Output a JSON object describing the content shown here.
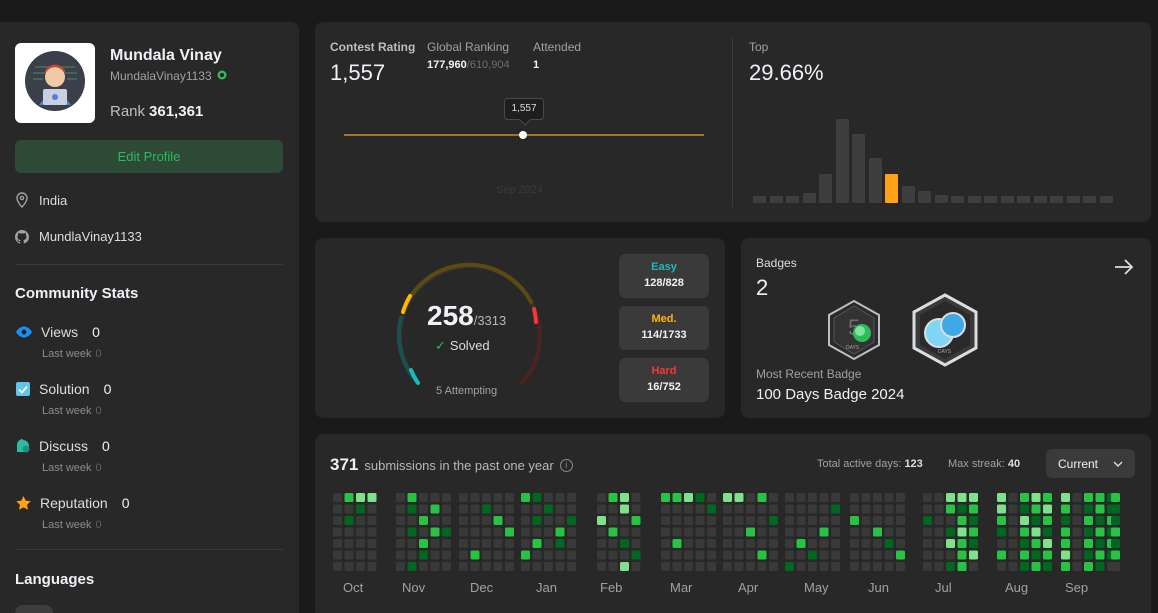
{
  "profile": {
    "name": "Mundala Vinay",
    "handle": "MundalaVinay1133",
    "rank_label": "Rank",
    "rank_value": "361,361",
    "edit_label": "Edit Profile",
    "location": "India",
    "github": "MundlaVinay1133"
  },
  "community": {
    "title": "Community Stats",
    "items": [
      {
        "label": "Views",
        "value": "0",
        "sub_label": "Last week",
        "sub_value": "0",
        "icon": "eye-icon",
        "color": "#1a90ff"
      },
      {
        "label": "Solution",
        "value": "0",
        "sub_label": "Last week",
        "sub_value": "0",
        "icon": "check-square-icon",
        "color": "#5fc4ee"
      },
      {
        "label": "Discuss",
        "value": "0",
        "sub_label": "Last week",
        "sub_value": "0",
        "icon": "discuss-icon",
        "color": "#2cbba3"
      },
      {
        "label": "Reputation",
        "value": "0",
        "sub_label": "Last week",
        "sub_value": "0",
        "icon": "star-icon",
        "color": "#ffa116"
      }
    ]
  },
  "languages": {
    "title": "Languages"
  },
  "contest": {
    "rating_label": "Contest Rating",
    "rating": "1,557",
    "global_label": "Global Ranking",
    "global_value": "177,960",
    "global_total": "/610,904",
    "attended_label": "Attended",
    "attended_value": "1",
    "tooltip": "1,557",
    "date": "Sep 2024",
    "top_label": "Top",
    "top_value": "29.66%",
    "histogram_levels": [
      0.08,
      0.08,
      0.08,
      0.12,
      0.34,
      1.0,
      0.82,
      0.54,
      0.34,
      0.2,
      0.14,
      0.1,
      0.08,
      0.08,
      0.08,
      0.08,
      0.08,
      0.08,
      0.08,
      0.08,
      0.08,
      0.08
    ],
    "histogram_highlight_index": 8,
    "highlight_color": "#ffa116"
  },
  "solved": {
    "count": "258",
    "total": "/3313",
    "label": "Solved",
    "attempting": "5 Attempting",
    "easy_label": "Easy",
    "easy_value": "128/828",
    "easy_color": "#1cbaba",
    "med_label": "Med.",
    "med_value": "114/1733",
    "med_color": "#ffb700",
    "hard_label": "Hard",
    "hard_value": "16/752",
    "hard_color": "#f63737"
  },
  "badges": {
    "label": "Badges",
    "count": "2",
    "recent_label": "Most Recent Badge",
    "recent_name": "100 Days Badge 2024",
    "badge1_text": "DAYS",
    "badge2_text": "DAYS"
  },
  "submissions": {
    "count": "371",
    "label": "submissions in the past one year",
    "active_label": "Total active days:",
    "active_value": "123",
    "streak_label": "Max streak:",
    "streak_value": "40",
    "select_value": "Current",
    "months": [
      "Oct",
      "Nov",
      "Dec",
      "Jan",
      "Feb",
      "Mar",
      "Apr",
      "May",
      "Jun",
      "Jul",
      "Aug",
      "Sep"
    ]
  }
}
